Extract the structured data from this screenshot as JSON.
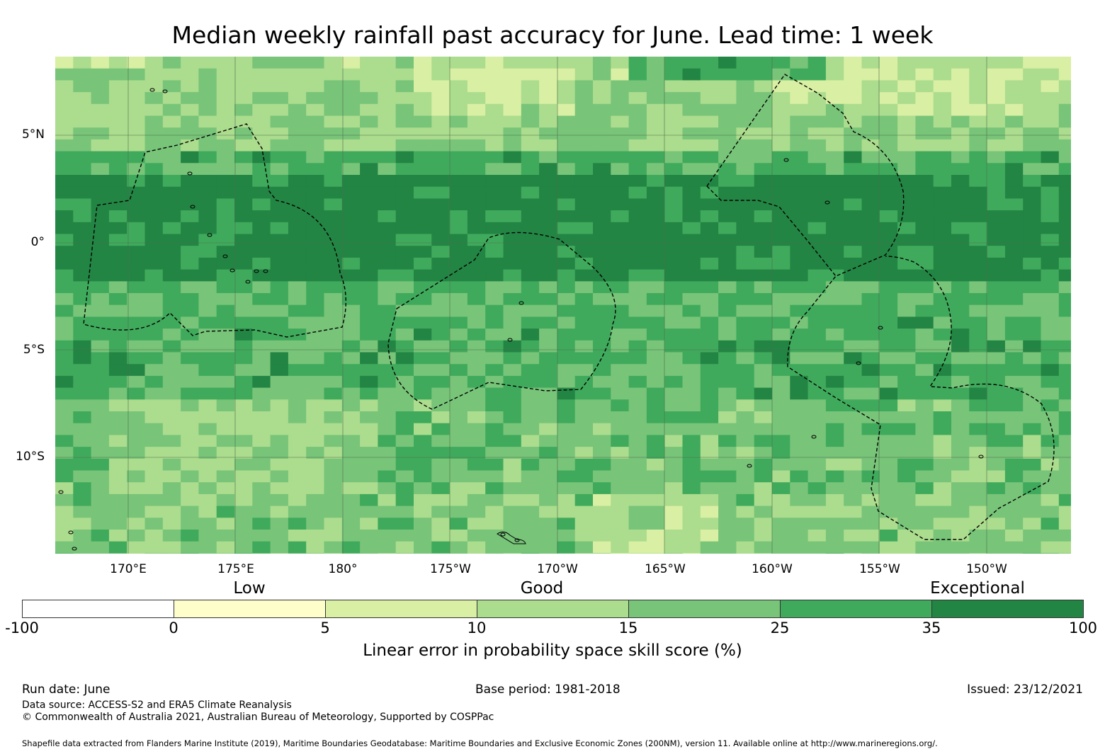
{
  "title": "Median weekly rainfall past accuracy for June. Lead time: 1 week",
  "map": {
    "lat_labels": [
      "5°N",
      "0°",
      "5°S",
      "10°S"
    ],
    "lon_labels": [
      "170°E",
      "175°E",
      "180°",
      "175°W",
      "170°W",
      "165°W",
      "160°W",
      "155°W",
      "150°W"
    ],
    "gridline_color": "#4a6e4a",
    "boundary_style": "dashed"
  },
  "legend": {
    "categories": [
      "Low",
      "Good",
      "Exceptional"
    ],
    "ticks": [
      "-100",
      "0",
      "5",
      "10",
      "15",
      "25",
      "35",
      "100"
    ],
    "colors": [
      "#ffffff",
      "#fefecb",
      "#d9efa3",
      "#acdc8d",
      "#78c479",
      "#40aa5c",
      "#238544"
    ],
    "title": "Linear error in probability space skill score (%)"
  },
  "footer": {
    "run_date": "Run date: June",
    "base_period": "Base period: 1981-2018",
    "issued": "Issued: 23/12/2021",
    "data_source": "Data source: ACCESS-S2 and ERA5 Climate Reanalysis",
    "copyright": "© Commonwealth of Australia 2021, Australian Bureau of Meteorology, Supported by COSPPac",
    "shapefile": "Shapefile data extracted from Flanders Marine Institute (2019), Maritime Boundaries Geodatabase: Maritime Boundaries and Exclusive Economic Zones (200NM), version 11. Available online at http://www.marineregions.org/."
  }
}
